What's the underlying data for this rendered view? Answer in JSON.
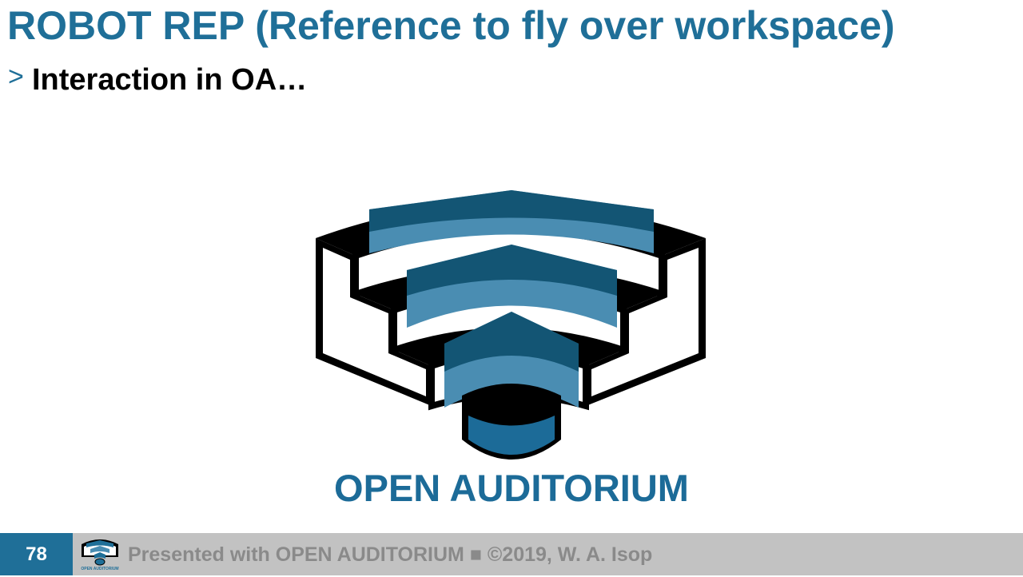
{
  "slide": {
    "title": "ROBOT REP (Reference to fly over workspace)",
    "bullet_marker": ">",
    "bullet_text": "Interaction in OA…"
  },
  "logo": {
    "wordmark": "OPEN AUDITORIUM",
    "colors": {
      "dark_blue": "#135574",
      "light_blue": "#4a8db2",
      "cylinder": "#1c6b98",
      "outline": "#000000"
    }
  },
  "footer": {
    "page_number": "78",
    "text": "Presented with OPEN AUDITORIUM ■ ©2019, W. A. Isop",
    "logo_caption": "OPEN AUDITORIUM"
  },
  "theme": {
    "accent": "#1f6f98",
    "footer_bg": "#c2c2c2",
    "footer_text": "#8a8a8a"
  }
}
